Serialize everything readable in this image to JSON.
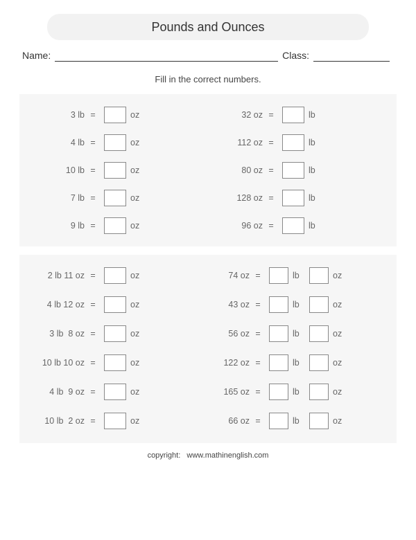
{
  "title": "Pounds and Ounces",
  "labels": {
    "name": "Name:",
    "class": "Class:"
  },
  "instruction": "Fill in the correct numbers.",
  "section1": {
    "left": [
      {
        "given": "3 lb",
        "unit": "oz"
      },
      {
        "given": "4 lb",
        "unit": "oz"
      },
      {
        "given": "10 lb",
        "unit": "oz"
      },
      {
        "given": "7 lb",
        "unit": "oz"
      },
      {
        "given": "9 lb",
        "unit": "oz"
      }
    ],
    "right": [
      {
        "given": "32 oz",
        "unit": "lb"
      },
      {
        "given": "112 oz",
        "unit": "lb"
      },
      {
        "given": "80 oz",
        "unit": "lb"
      },
      {
        "given": "128 oz",
        "unit": "lb"
      },
      {
        "given": "96 oz",
        "unit": "lb"
      }
    ]
  },
  "section2": {
    "left": [
      {
        "given": "2 lb 11 oz",
        "unit": "oz"
      },
      {
        "given": "4 lb 12 oz",
        "unit": "oz"
      },
      {
        "given": "3 lb  8 oz",
        "unit": "oz"
      },
      {
        "given": "10 lb 10 oz",
        "unit": "oz"
      },
      {
        "given": "4 lb  9 oz",
        "unit": "oz"
      },
      {
        "given": "10 lb  2 oz",
        "unit": "oz"
      }
    ],
    "right": [
      {
        "given": "74 oz",
        "u1": "lb",
        "u2": "oz"
      },
      {
        "given": "43 oz",
        "u1": "lb",
        "u2": "oz"
      },
      {
        "given": "56 oz",
        "u1": "lb",
        "u2": "oz"
      },
      {
        "given": "122 oz",
        "u1": "lb",
        "u2": "oz"
      },
      {
        "given": "165 oz",
        "u1": "lb",
        "u2": "oz"
      },
      {
        "given": "66 oz",
        "u1": "lb",
        "u2": "oz"
      }
    ]
  },
  "eq": "=",
  "copyright": "copyright:   www.mathinenglish.com",
  "colors": {
    "page_bg": "#ffffff",
    "section_bg": "#f6f6f6",
    "pill_bg": "#f2f2f2",
    "text": "#555",
    "box_border": "#888"
  }
}
